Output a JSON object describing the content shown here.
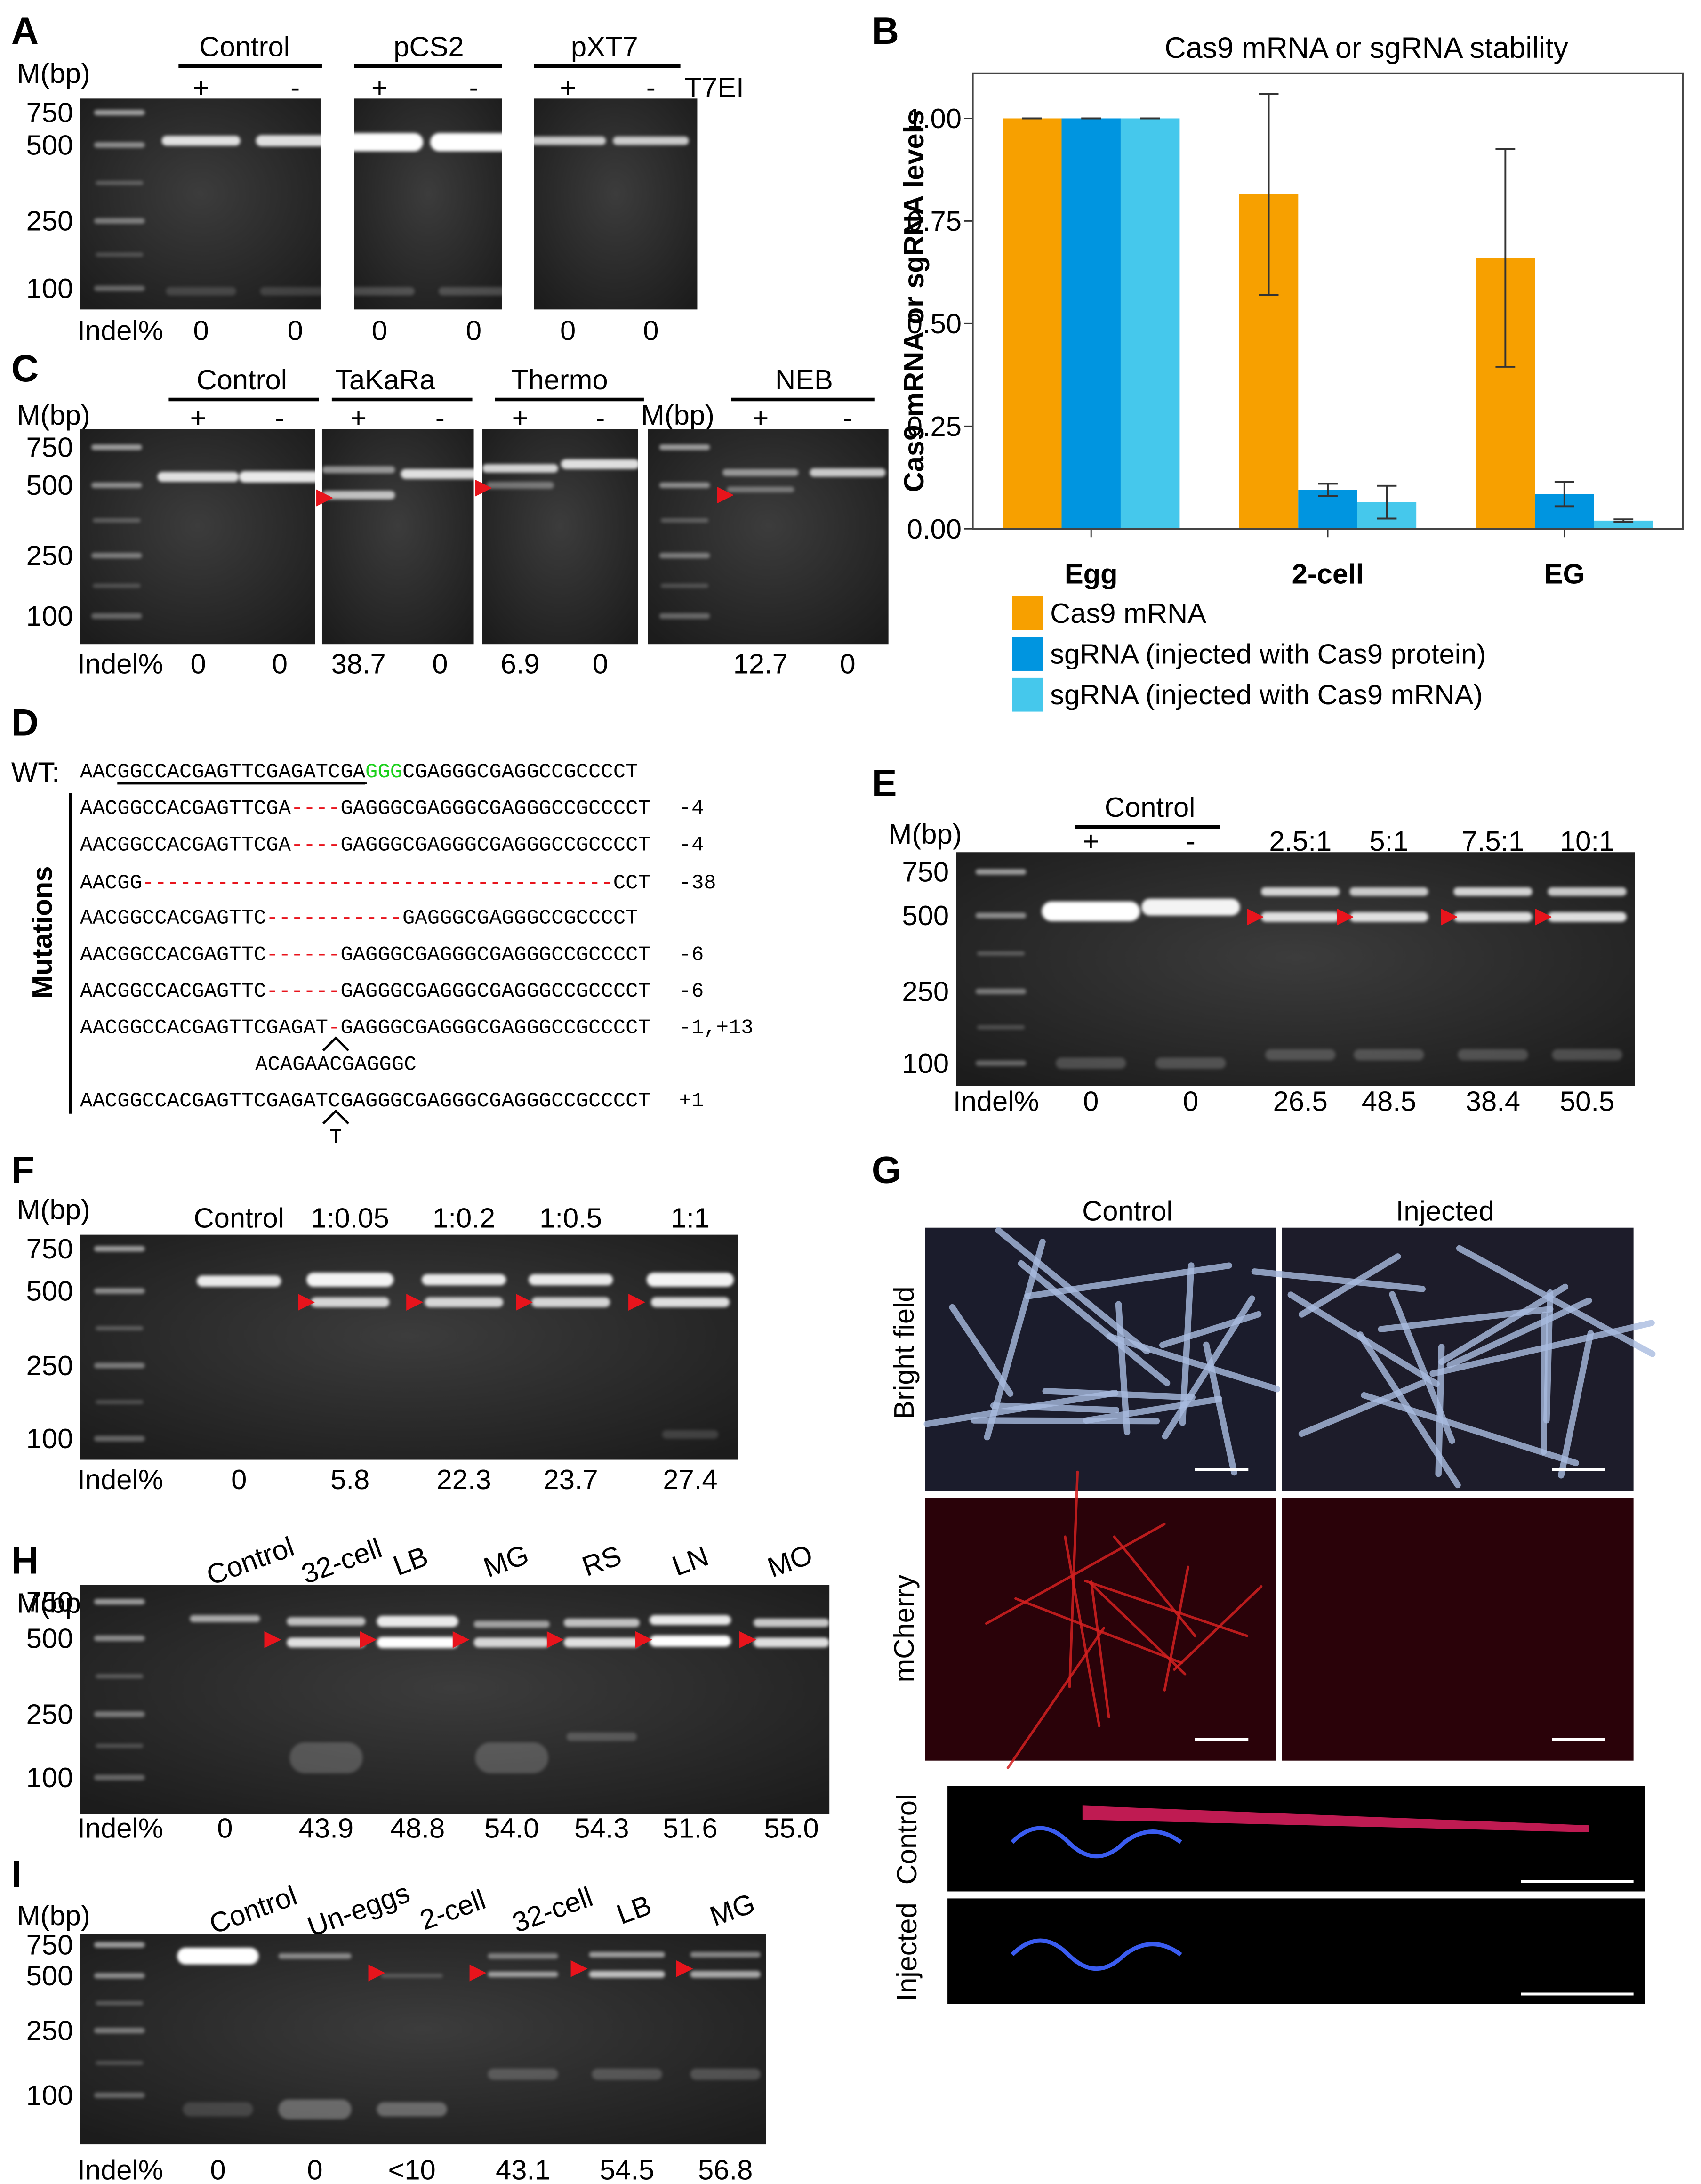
{
  "panels": {
    "a": {
      "label": "A",
      "marker": "M(bp)",
      "groups": [
        "Control",
        "pCS2",
        "pXT7"
      ],
      "lanes": [
        "+",
        "-",
        "+",
        "-",
        "+",
        "-"
      ],
      "enzyme": "T7EI",
      "ladder": [
        "750",
        "500",
        "250",
        "100"
      ],
      "indel_label": "Indel%",
      "indels": [
        "0",
        "0",
        "0",
        "0",
        "0",
        "0"
      ]
    },
    "c": {
      "label": "C",
      "markers": [
        "M(bp)",
        "M(bp)"
      ],
      "groups": [
        "Control",
        "TaKaRa",
        "Thermo",
        "NEB"
      ],
      "lanes": [
        "+",
        "-",
        "+",
        "-",
        "+",
        "-",
        "+",
        "-"
      ],
      "ladder": [
        "750",
        "500",
        "250",
        "100"
      ],
      "indel_label": "Indel%",
      "indels": [
        "0",
        "0",
        "38.7",
        "0",
        "6.9",
        "0",
        "12.7",
        "0"
      ]
    },
    "d": {
      "label": "D",
      "wt_label": "WT:",
      "wt": [
        "AAC",
        "GGCCACGAGTTCGAGATCGA",
        "GGG",
        "CGAGGGCGAGGCCGCCCCT"
      ],
      "side_label": "Mutations",
      "rows": [
        {
          "left": "AACGGCCACGAGTTCGA",
          "gap": "----",
          "right": "GAGGGCGAGGGCGAGGGCCGCCCCT",
          "change": "-4"
        },
        {
          "left": "AACGGCCACGAGTTCGA",
          "gap": "----",
          "right": "GAGGGCGAGGGCGAGGGCCGCCCCT",
          "change": "-4"
        },
        {
          "left": "AACGG",
          "gap": "--------------------------------------",
          "right": "CCT",
          "change": "-38"
        },
        {
          "left": "AACGGCCACGAGTTC",
          "gap": "-----------",
          "right": "GAGGGCGAGGGCCGCCCCT"
        },
        {
          "left": "AACGGCCACGAGTTC",
          "gap": "------",
          "right": "GAGGGCGAGGGCGAGGGCCGCCCCT",
          "change": "-6"
        },
        {
          "left": "AACGGCCACGAGTTC",
          "gap": "------",
          "right": "GAGGGCGAGGGCGAGGGCCGCCCCT",
          "change": "-6"
        },
        {
          "left": "AACGGCCACGAGTTCGAGAT",
          "gap": "-",
          "right": "GAGGGCGAGGGCGAGGGCCGCCCCT",
          "change": "-1,+13",
          "insert": "ACAGAACGAGGGC"
        },
        {
          "left": "AACGGCCACGAGTTCGAGATCGAGGGCGAGGGCGAGGGCCGCCCCT",
          "change": "+1",
          "insert": "T"
        }
      ]
    },
    "e": {
      "label": "E",
      "marker": "M(bp)",
      "groups": [
        "Control"
      ],
      "lanes": [
        "+",
        "-",
        "2.5:1",
        "5:1",
        "7.5:1",
        "10:1"
      ],
      "ladder": [
        "750",
        "500",
        "250",
        "100"
      ],
      "indel_label": "Indel%",
      "indels": [
        "0",
        "0",
        "26.5",
        "48.5",
        "38.4",
        "50.5"
      ]
    },
    "f": {
      "label": "F",
      "marker": "M(bp)",
      "lanes": [
        "Control",
        "1:0.05",
        "1:0.2",
        "1:0.5",
        "1:1"
      ],
      "ladder": [
        "750",
        "500",
        "250",
        "100"
      ],
      "indel_label": "Indel%",
      "indels": [
        "0",
        "5.8",
        "22.3",
        "23.7",
        "27.4"
      ]
    },
    "g": {
      "label": "G",
      "columns": [
        "Control",
        "Injected"
      ],
      "rows": [
        "Bright field",
        "mCherry"
      ],
      "section_labels": [
        "Control",
        "Injected"
      ]
    },
    "h": {
      "label": "H",
      "marker": "M(bp)",
      "lanes": [
        "Control",
        "32-cell",
        "LB",
        "MG",
        "RS",
        "LN",
        "MO"
      ],
      "ladder": [
        "750",
        "500",
        "250",
        "100"
      ],
      "indel_label": "Indel%",
      "indels": [
        "0",
        "43.9",
        "48.8",
        "54.0",
        "54.3",
        "51.6",
        "55.0"
      ]
    },
    "i": {
      "label": "I",
      "marker": "M(bp)",
      "lanes": [
        "Control",
        "Un-eggs",
        "2-cell",
        "32-cell",
        "LB",
        "MG"
      ],
      "ladder": [
        "750",
        "500",
        "250",
        "100"
      ],
      "indel_label": "Indel%",
      "indels": [
        "0",
        "0",
        "<10",
        "43.1",
        "54.5",
        "56.8"
      ]
    }
  },
  "chart_data": {
    "type": "bar",
    "label": "B",
    "title": "Cas9 mRNA or sgRNA stability",
    "y_label": "Cas9 mRNA or sgRNA levels",
    "categories": [
      "Egg",
      "2-cell",
      "EG"
    ],
    "series": [
      {
        "name": "Cas9 mRNA",
        "color": "#f7a000",
        "values": [
          1.0,
          0.815,
          0.66
        ],
        "errors": [
          0,
          0.245,
          0.265
        ]
      },
      {
        "name": "sgRNA (injected with Cas9 protein)",
        "color": "#0095e0",
        "values": [
          1.0,
          0.095,
          0.085
        ],
        "errors": [
          0,
          0.015,
          0.03
        ]
      },
      {
        "name": "sgRNA (injected with Cas9 mRNA)",
        "color": "#45c8ec",
        "values": [
          1.0,
          0.065,
          0.02
        ],
        "errors": [
          0,
          0.04,
          0.003
        ]
      }
    ],
    "ylim": [
      0,
      1.11
    ],
    "yticks": [
      {
        "value": 0,
        "label": "0.00"
      },
      {
        "value": 0.25,
        "label": "0.25"
      },
      {
        "value": 0.5,
        "label": "0.50"
      },
      {
        "value": 0.75,
        "label": "0.75"
      },
      {
        "value": 1,
        "label": "1.00"
      }
    ],
    "grid": false,
    "legend": "bottom"
  }
}
